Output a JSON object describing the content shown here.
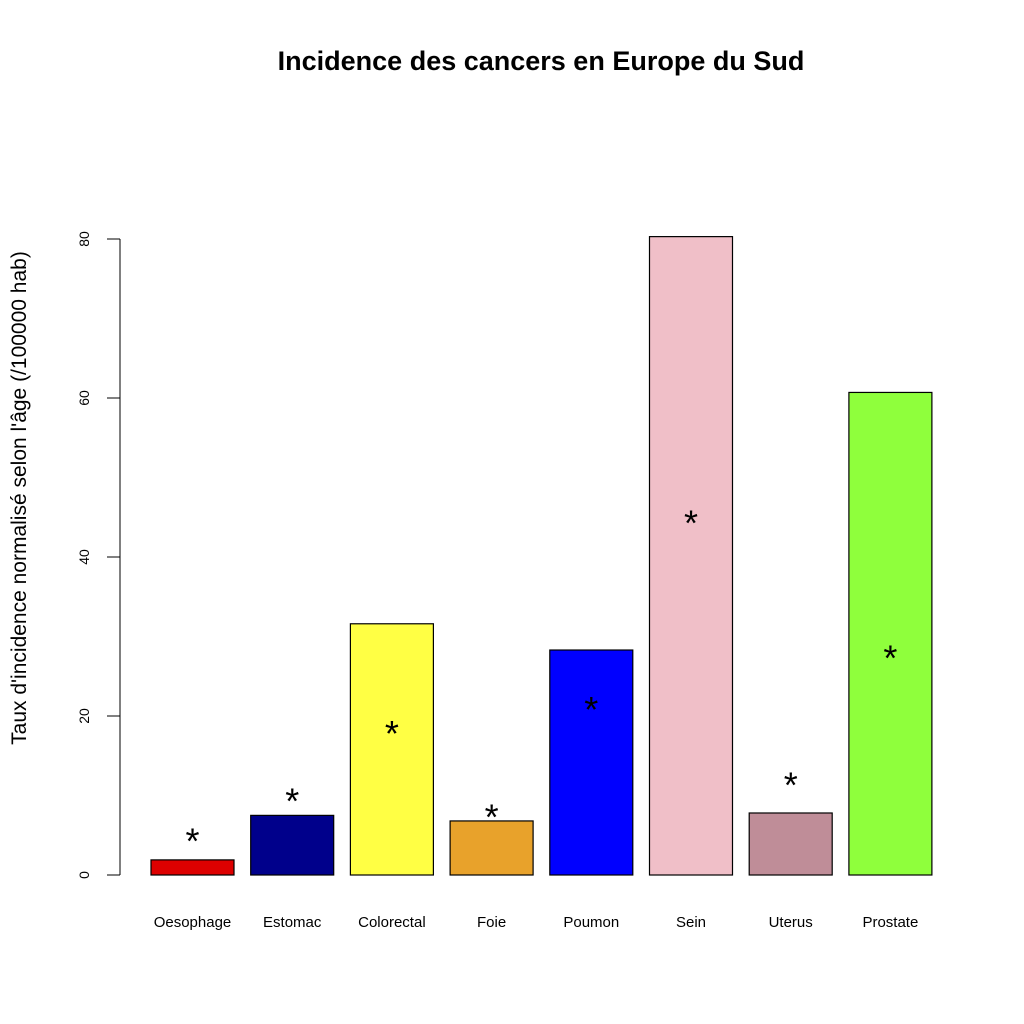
{
  "chart_data": {
    "type": "bar",
    "title": "Incidence des cancers en Europe du Sud",
    "xlabel": "",
    "ylabel": "Taux d'incidence normalisé selon l'âge (/100000 hab)",
    "ylim": [
      0,
      80
    ],
    "yticks": [
      0,
      20,
      40,
      60,
      80
    ],
    "grid": false,
    "categories": [
      "Oesophage",
      "Estomac",
      "Colorectal",
      "Foie",
      "Poumon",
      "Sein",
      "Uterus",
      "Prostate"
    ],
    "values": [
      1.9,
      7.5,
      31.6,
      6.8,
      28.3,
      80.3,
      7.8,
      60.7
    ],
    "colors": [
      "#dd0000",
      "#00008b",
      "#ffff44",
      "#e8a22b",
      "#0000ff",
      "#f0bfc8",
      "#bf8d98",
      "#8fff3c"
    ],
    "markers": {
      "symbol": "*",
      "values": [
        5.5,
        10.5,
        19.0,
        8.5,
        22.0,
        45.5,
        12.5,
        28.5
      ]
    }
  }
}
